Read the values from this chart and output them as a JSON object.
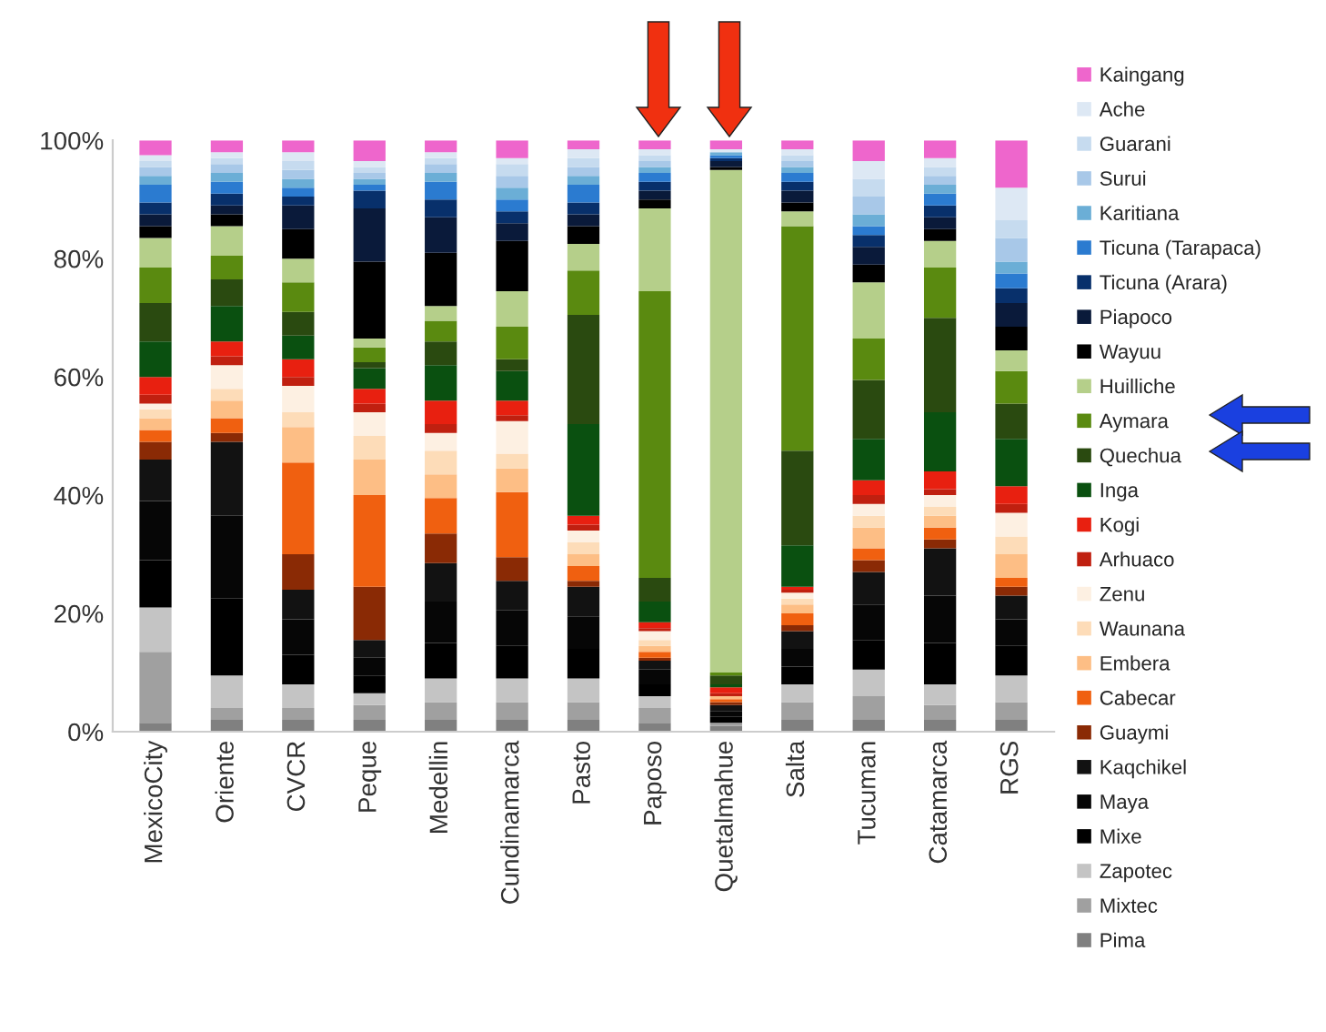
{
  "chart_data": {
    "type": "bar",
    "stacked": true,
    "legend": "right",
    "grid": false,
    "categories": [
      "MexicoCity",
      "Oriente",
      "CVCR",
      "Peque",
      "Medellin",
      "Cundinamarca",
      "Pasto",
      "Paposo",
      "Quetalmahue",
      "Salta",
      "Tucuman",
      "Catamarca",
      "RGS"
    ],
    "ylim": [
      0,
      100
    ],
    "yticks": [
      {
        "value": 0,
        "label": "0%"
      },
      {
        "value": 20,
        "label": "20%"
      },
      {
        "value": 40,
        "label": "40%"
      },
      {
        "value": 60,
        "label": "60%"
      },
      {
        "value": 80,
        "label": "80%"
      },
      {
        "value": 100,
        "label": "100%"
      }
    ],
    "series": [
      {
        "name": "Pima",
        "color": "#808080",
        "values": [
          1.5,
          2,
          2,
          2,
          2,
          2,
          2,
          1.5,
          1,
          2,
          2,
          2,
          2
        ]
      },
      {
        "name": "Mixtec",
        "color": "#a0a0a0",
        "values": [
          12,
          2,
          2,
          2.5,
          3,
          3,
          3,
          2.5,
          0.5,
          3,
          4,
          2.5,
          3
        ]
      },
      {
        "name": "Zapotec",
        "color": "#c4c4c4",
        "values": [
          7.5,
          5.5,
          4,
          2,
          4,
          4,
          4,
          2,
          null,
          3,
          4.5,
          3.5,
          4.5
        ]
      },
      {
        "name": "Mixe",
        "color": "#000000",
        "values": [
          8,
          13,
          5,
          3,
          6,
          5.5,
          5,
          2,
          1,
          3,
          5,
          7,
          5
        ]
      },
      {
        "name": "Maya",
        "color": "#060606",
        "values": [
          10,
          14,
          6,
          3,
          7,
          6,
          5.5,
          2.5,
          1,
          3,
          6,
          8,
          4.5
        ]
      },
      {
        "name": "Kaqchikel",
        "color": "#121212",
        "values": [
          7,
          12.5,
          5,
          3,
          6.5,
          5,
          5,
          1.5,
          1,
          3,
          5.5,
          8,
          4
        ]
      },
      {
        "name": "Guaymi",
        "color": "#8a2a05",
        "values": [
          3,
          1.5,
          6,
          9,
          5,
          4,
          1,
          0.5,
          0.5,
          1,
          2,
          1.5,
          1.5
        ]
      },
      {
        "name": "Cabecar",
        "color": "#f06010",
        "values": [
          2,
          2.5,
          15.5,
          15.5,
          6,
          11,
          2.5,
          1,
          0.5,
          2,
          2,
          2,
          1.5
        ]
      },
      {
        "name": "Embera",
        "color": "#fdbe85",
        "values": [
          2,
          3,
          6,
          6,
          4,
          4,
          2,
          1,
          0.5,
          1.5,
          3.5,
          2,
          4
        ]
      },
      {
        "name": "Waunana",
        "color": "#fddcb8",
        "values": [
          1.5,
          2,
          2.5,
          4,
          4,
          2.5,
          2,
          1,
          null,
          1,
          2,
          1.5,
          3
        ]
      },
      {
        "name": "Zenu",
        "color": "#fdf0e2",
        "values": [
          1,
          4,
          4.5,
          4,
          3,
          5.5,
          2,
          1.5,
          null,
          1,
          2,
          2,
          4
        ]
      },
      {
        "name": "Arhuaco",
        "color": "#c02010",
        "values": [
          1.5,
          1.5,
          1.5,
          1.5,
          1.5,
          1,
          1,
          0.5,
          0.5,
          0.5,
          1.5,
          1,
          1.5
        ]
      },
      {
        "name": "Kogi",
        "color": "#e82010",
        "values": [
          3,
          2.5,
          3,
          2.5,
          4,
          2.5,
          1.5,
          1,
          1,
          0.5,
          2.5,
          3,
          3
        ]
      },
      {
        "name": "Inga",
        "color": "#0a5010",
        "values": [
          6,
          6,
          4,
          3.5,
          6,
          5,
          15.5,
          3.5,
          0.5,
          7,
          7,
          10,
          8
        ]
      },
      {
        "name": "Quechua",
        "color": "#2a4a10",
        "values": [
          6.5,
          4.5,
          4,
          1,
          4,
          2,
          18.5,
          4,
          1.5,
          16,
          10,
          16,
          6
        ]
      },
      {
        "name": "Aymara",
        "color": "#5a8a10",
        "values": [
          6,
          4,
          5,
          2.5,
          3.5,
          5.5,
          7.5,
          48.5,
          0.5,
          38,
          7,
          8.5,
          5.5
        ]
      },
      {
        "name": "Huilliche",
        "color": "#b5cf8a",
        "values": [
          5,
          5,
          4,
          1.5,
          2.5,
          6,
          4.5,
          14,
          85,
          2.5,
          9.5,
          4.5,
          3.5
        ]
      },
      {
        "name": "Wayuu",
        "color": "#000000",
        "values": [
          2,
          2,
          5,
          13,
          9,
          8.5,
          3,
          1.5,
          0.5,
          1.5,
          3,
          2,
          4
        ]
      },
      {
        "name": "Piapoco",
        "color": "#0a1a3a",
        "values": [
          2,
          1.5,
          4,
          9,
          6,
          3,
          2,
          1.5,
          1,
          2,
          3,
          2,
          4
        ]
      },
      {
        "name": "Ticuna (Arara)",
        "color": "#08306b",
        "values": [
          2,
          2,
          1.5,
          3,
          3,
          2,
          2,
          1.5,
          0.5,
          1.5,
          2,
          2,
          2.5
        ]
      },
      {
        "name": "Ticuna (Tarapaca)",
        "color": "#2b7bd0",
        "values": [
          3,
          2,
          1.5,
          1,
          3,
          2,
          3,
          1.5,
          0.5,
          1.5,
          1.5,
          2,
          2.5
        ]
      },
      {
        "name": "Karitiana",
        "color": "#6baed6",
        "values": [
          1.5,
          1.5,
          1.5,
          1,
          1.5,
          2,
          1.5,
          1,
          0.5,
          1,
          2,
          1.5,
          2
        ]
      },
      {
        "name": "Surui",
        "color": "#a8c8e8",
        "values": [
          1.5,
          1.5,
          1.5,
          1,
          1.5,
          2,
          1.5,
          1,
          null,
          1,
          3,
          1.5,
          4
        ]
      },
      {
        "name": "Guarani",
        "color": "#c6dbef",
        "values": [
          1,
          1,
          1.5,
          1,
          1,
          2,
          1.5,
          1,
          null,
          1,
          3,
          1.5,
          3
        ]
      },
      {
        "name": "Ache",
        "color": "#dde8f4",
        "values": [
          1,
          1,
          1.5,
          1,
          1,
          1,
          1.5,
          1,
          0.5,
          1,
          3,
          1.5,
          5.5
        ]
      },
      {
        "name": "Kaingang",
        "color": "#ee66cc",
        "values": [
          2.5,
          2,
          2,
          3.5,
          2,
          3,
          1.5,
          1.5,
          1.5,
          1.5,
          3.5,
          3,
          8
        ]
      }
    ]
  }
}
